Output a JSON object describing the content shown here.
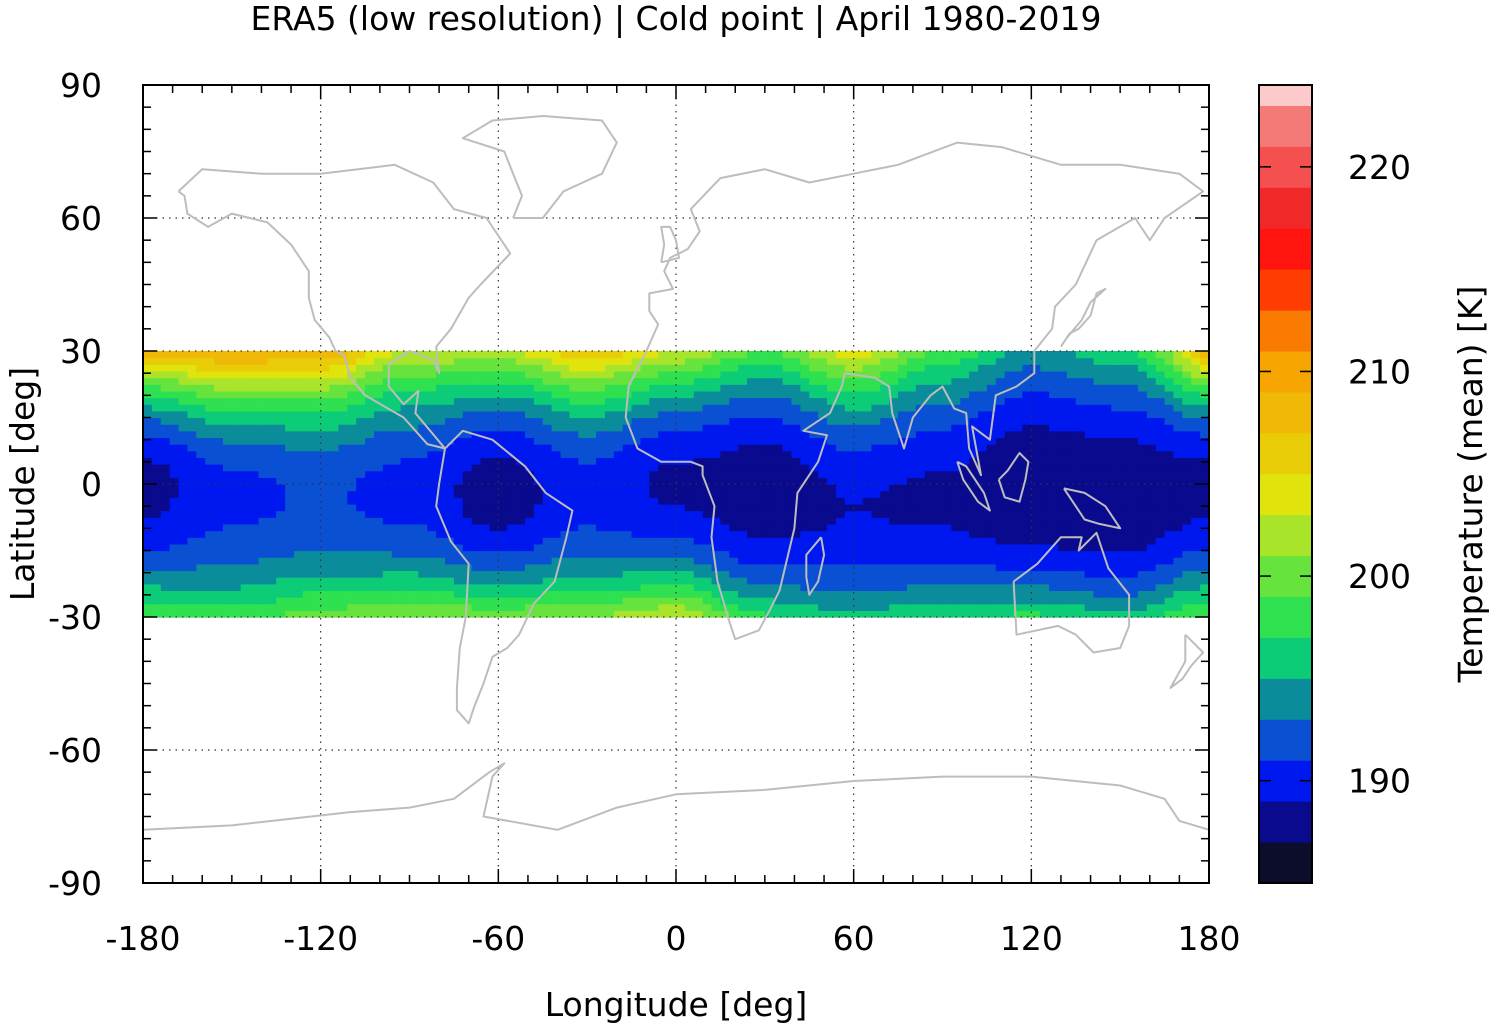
{
  "chart_data": {
    "type": "heatmap",
    "title": "ERA5 (low resolution) | Cold point | April 1980-2019",
    "xlabel": "Longitude [deg]",
    "ylabel": "Latitude [deg]",
    "xlim": [
      -180,
      180
    ],
    "ylim": [
      -90,
      90
    ],
    "xticks": [
      -180,
      -120,
      -60,
      0,
      60,
      120,
      180
    ],
    "yticks": [
      -90,
      -60,
      -30,
      0,
      30,
      60,
      90
    ],
    "grid": true,
    "data_extent_lat": [
      -30,
      30
    ],
    "colorbar": {
      "label": "Temperature (mean) [K]",
      "range": [
        185,
        224
      ],
      "ticks": [
        190,
        200,
        210,
        220
      ],
      "levels": [
        185,
        187,
        189,
        191,
        193,
        195,
        197,
        199,
        201,
        203,
        205,
        207,
        209,
        211,
        213,
        215,
        217,
        219,
        221,
        223
      ],
      "colors": [
        "#0b0d2b",
        "#0a0a8f",
        "#0018f0",
        "#0a50d2",
        "#0a8c9b",
        "#0ccc78",
        "#2fe050",
        "#66e33c",
        "#a8e42a",
        "#e0e40c",
        "#e8cc08",
        "#f0b908",
        "#f6a400",
        "#fa7a02",
        "#ff3c02",
        "#ff1410",
        "#f02828",
        "#f55050",
        "#f47a78",
        "#fccaca"
      ]
    },
    "temperature_field_K": {
      "lon_knots": [
        -180,
        -150,
        -120,
        -90,
        -60,
        -30,
        0,
        30,
        60,
        90,
        120,
        150,
        180
      ],
      "equator_min": [
        188.3,
        190.5,
        191.2,
        190.3,
        188.0,
        190.2,
        188.6,
        187.7,
        189.0,
        188.6,
        187.3,
        187.4,
        188.3
      ],
      "center_lat": [
        0,
        -2,
        -3,
        -2,
        -2,
        -2,
        0,
        -2,
        -5,
        -4,
        -3,
        -4,
        0
      ],
      "half_width_north": [
        12,
        13,
        14,
        16,
        15,
        14,
        14,
        17,
        16,
        19,
        22,
        20,
        12
      ],
      "half_width_south": [
        16,
        18,
        16,
        15,
        14,
        15,
        14,
        16,
        17,
        16,
        15,
        16,
        16
      ]
    }
  }
}
